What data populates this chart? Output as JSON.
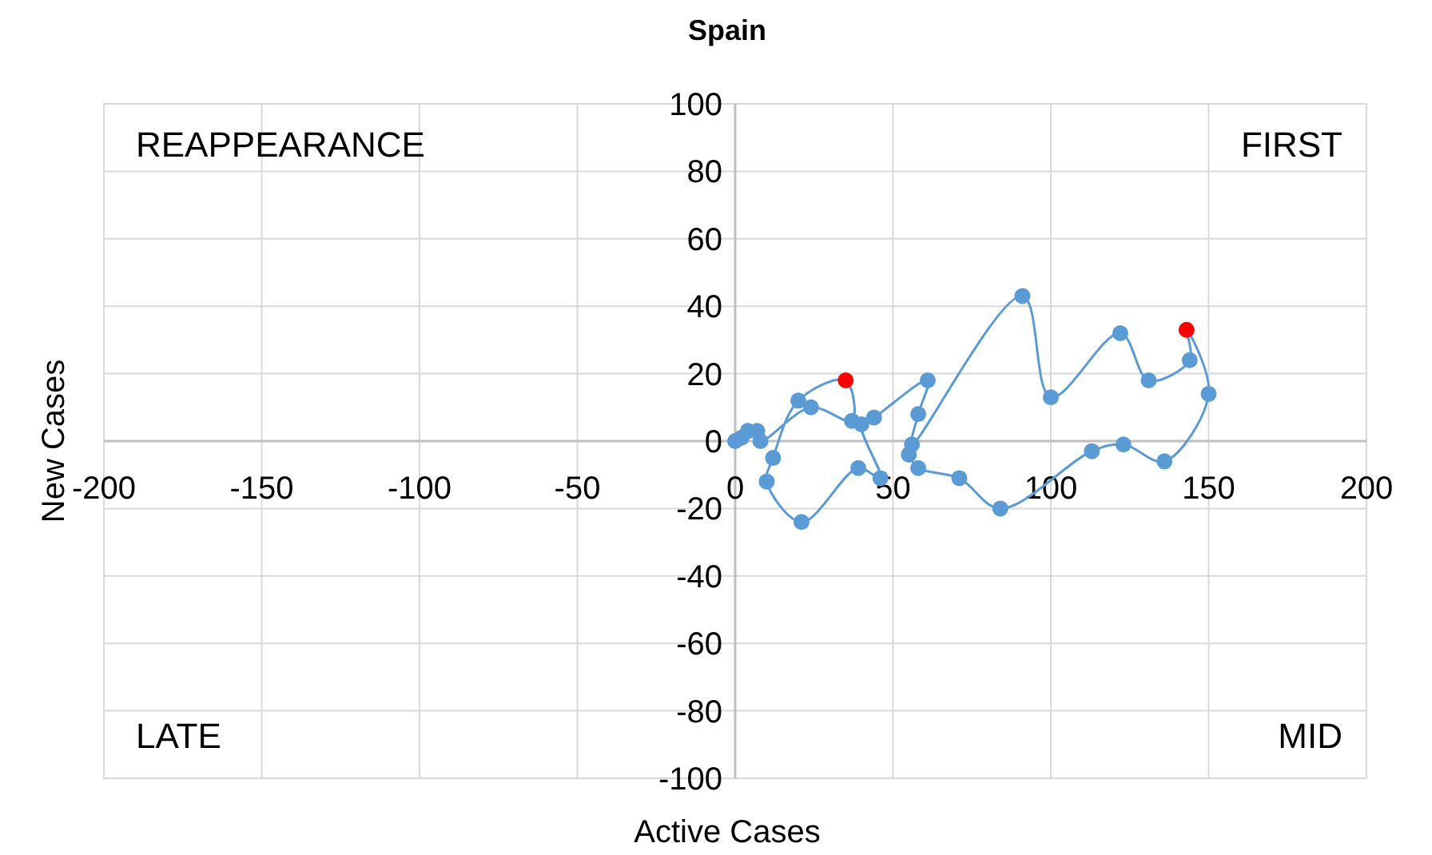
{
  "chart_data": {
    "type": "line",
    "title": "Spain",
    "xlabel": "Active Cases",
    "ylabel": "New Cases",
    "xlim": [
      -200,
      200
    ],
    "xticks": [
      -200,
      -150,
      -100,
      -50,
      0,
      50,
      100,
      150,
      200
    ],
    "ylim": [
      -100,
      100
    ],
    "yticks": [
      -100,
      -80,
      -60,
      -40,
      -20,
      0,
      20,
      40,
      60,
      80,
      100
    ],
    "grid": true,
    "marker": "circle",
    "line_style": "solid",
    "annotations": [
      "REAPPEARANCE",
      "FIRST",
      "LATE",
      "MID"
    ],
    "series": [
      {
        "color": "#5b9bd5",
        "x": [
          0,
          2,
          4,
          7,
          8,
          24,
          37,
          35,
          20,
          12,
          10,
          21,
          39,
          46,
          40,
          44,
          61,
          58,
          56,
          91,
          100,
          122,
          131,
          144,
          143,
          150,
          136,
          123,
          113,
          84,
          71,
          58,
          55
        ],
        "values": [
          0,
          1,
          3,
          3,
          0,
          10,
          6,
          18,
          12,
          -5,
          -12,
          -24,
          -8,
          -11,
          5,
          7,
          18,
          8,
          -1,
          43,
          13,
          32,
          18,
          24,
          33,
          14,
          -6,
          -1,
          -3,
          -20,
          -11,
          -8,
          -4
        ],
        "colors": [
          "#5b9bd5",
          "#5b9bd5",
          "#5b9bd5",
          "#5b9bd5",
          "#5b9bd5",
          "#5b9bd5",
          "#5b9bd5",
          "#ff0000",
          "#5b9bd5",
          "#5b9bd5",
          "#5b9bd5",
          "#5b9bd5",
          "#5b9bd5",
          "#5b9bd5",
          "#5b9bd5",
          "#5b9bd5",
          "#5b9bd5",
          "#5b9bd5",
          "#5b9bd5",
          "#5b9bd5",
          "#5b9bd5",
          "#5b9bd5",
          "#5b9bd5",
          "#5b9bd5",
          "#ff0000",
          "#5b9bd5",
          "#5b9bd5",
          "#5b9bd5",
          "#5b9bd5",
          "#5b9bd5",
          "#5b9bd5",
          "#5b9bd5",
          "#5b9bd5"
        ]
      }
    ]
  }
}
